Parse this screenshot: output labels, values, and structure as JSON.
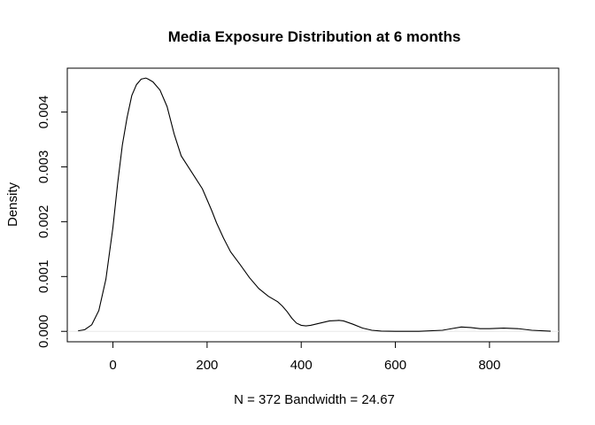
{
  "chart_data": {
    "type": "line",
    "title": "Media Exposure Distribution at 6 months",
    "xlabel": "N = 372   Bandwidth = 24.67",
    "ylabel": "Density",
    "xlim": [
      -97,
      947
    ],
    "ylim": [
      -0.00019,
      0.0048
    ],
    "x_ticks": [
      0,
      200,
      400,
      600,
      800
    ],
    "x_tick_labels": [
      "0",
      "200",
      "400",
      "600",
      "800"
    ],
    "y_ticks": [
      0.0,
      0.001,
      0.002,
      0.003,
      0.004
    ],
    "y_tick_labels": [
      "0.000",
      "0.001",
      "0.002",
      "0.003",
      "0.004"
    ],
    "zero_line": true,
    "grid": false,
    "series": [
      {
        "x": [
          -74,
          -60,
          -45,
          -30,
          -15,
          0,
          10,
          20,
          30,
          40,
          50,
          60,
          70,
          75,
          85,
          100,
          115,
          130,
          145,
          160,
          175,
          190,
          200,
          210,
          220,
          235,
          250,
          270,
          290,
          310,
          330,
          350,
          360,
          370,
          380,
          390,
          400,
          410,
          420,
          440,
          460,
          480,
          490,
          510,
          530,
          550,
          570,
          600,
          650,
          700,
          720,
          740,
          760,
          780,
          800,
          830,
          860,
          890,
          930
        ],
        "y": [
          1e-05,
          3e-05,
          0.00012,
          0.00038,
          0.00095,
          0.0019,
          0.0027,
          0.0034,
          0.0039,
          0.0043,
          0.0045,
          0.0046,
          0.00462,
          0.0046,
          0.00455,
          0.0044,
          0.0041,
          0.0036,
          0.0032,
          0.003,
          0.0028,
          0.0026,
          0.0024,
          0.0022,
          0.00198,
          0.0017,
          0.00145,
          0.00122,
          0.00098,
          0.00078,
          0.00064,
          0.00054,
          0.00046,
          0.00036,
          0.00024,
          0.00015,
          0.00011,
          0.0001,
          0.00011,
          0.00015,
          0.00019,
          0.0002,
          0.00019,
          0.00013,
          6e-05,
          2e-05,
          5e-06,
          0.0,
          0.0,
          2e-05,
          5e-05,
          8e-05,
          7e-05,
          5e-05,
          5e-05,
          6e-05,
          5e-05,
          2e-05,
          3e-06
        ]
      }
    ]
  }
}
